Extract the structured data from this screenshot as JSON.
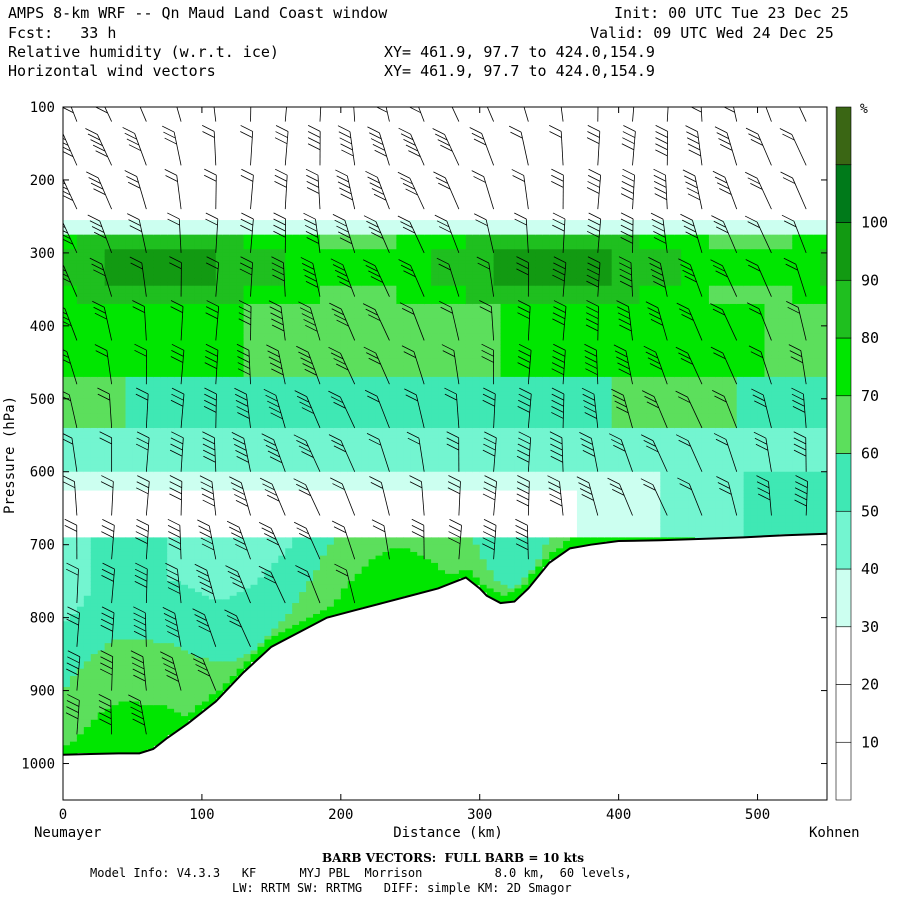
{
  "header": {
    "title": "AMPS 8-km WRF -- Qn Maud Land Coast window",
    "init": "Init: 00 UTC Tue 23 Dec 25",
    "fcst": "Fcst:   33 h",
    "valid": "Valid: 09 UTC Wed 24 Dec 25",
    "field1": "Relative humidity (w.r.t. ice)",
    "xy1": "XY= 461.9, 97.7 to 424.0,154.9",
    "field2": "Horizontal wind vectors",
    "xy2": "XY= 461.9, 97.7 to 424.0,154.9"
  },
  "footer": {
    "barb_note": "BARB VECTORS:  FULL BARB = 10 kts",
    "model_info": "Model Info: V4.3.3   KF      MYJ PBL  Morrison          8.0 km,  60 levels,",
    "model_info2": "LW: RRTM SW: RRTMG   DIFF: simple KM: 2D Smagor"
  },
  "chart_data": {
    "type": "heatmap",
    "title": "Relative humidity (w.r.t. ice) and horizontal wind vectors, cross-section",
    "xlabel": "Distance (km)",
    "ylabel": "Pressure (hPa)",
    "x_start_label": "Neumayer",
    "x_end_label": "Kohnen",
    "xlim": [
      0,
      550
    ],
    "ylim": [
      100,
      1050
    ],
    "x_ticks": [
      0,
      100,
      200,
      300,
      400,
      500
    ],
    "y_ticks": [
      100,
      200,
      300,
      400,
      500,
      600,
      700,
      800,
      900,
      1000
    ],
    "colorbar_unit": "%",
    "colorbar_ticks": [
      10,
      20,
      30,
      40,
      50,
      60,
      70,
      80,
      90,
      100
    ],
    "colorbar_levels": [
      0,
      10,
      20,
      30,
      40,
      50,
      60,
      70,
      80,
      90,
      100,
      110
    ],
    "colorbar_colors": [
      "#ffffff",
      "#ffffff",
      "#ffffff",
      "#ccfff0",
      "#73f5d0",
      "#3fe8b4",
      "#5cdf5c",
      "#00e600",
      "#1fbf1f",
      "#129a12",
      "#007a1a",
      "#3a6614"
    ],
    "terrain_surface": {
      "x_km": [
        0,
        20,
        40,
        55,
        65,
        75,
        90,
        110,
        130,
        150,
        170,
        190,
        210,
        230,
        250,
        270,
        290,
        300,
        305,
        315,
        325,
        335,
        350,
        365,
        380,
        400,
        430,
        460,
        490,
        520,
        550
      ],
      "p_hpa": [
        988,
        987,
        986,
        986,
        980,
        965,
        945,
        915,
        875,
        840,
        820,
        800,
        790,
        780,
        770,
        760,
        745,
        760,
        770,
        780,
        778,
        760,
        725,
        705,
        700,
        695,
        694,
        692,
        690,
        687,
        685
      ]
    },
    "rh_features": [
      {
        "label": "dry layer near 650 hPa",
        "p_range": [
          620,
          690
        ],
        "rh": 15
      },
      {
        "label": "dry upper layer",
        "p_range": [
          100,
          255
        ],
        "rh": 5
      },
      {
        "label": "moist band",
        "p_range": [
          290,
          360
        ],
        "rh": 85
      }
    ],
    "wind_barbs": {
      "x_km": [
        10,
        35,
        60,
        85,
        110,
        135,
        160,
        185,
        210,
        235,
        260,
        285,
        310,
        335,
        360,
        385,
        410,
        435,
        460,
        485,
        510,
        535
      ],
      "p_levels_hpa": [
        120,
        180,
        240,
        300,
        360,
        420,
        480,
        540,
        600,
        660,
        720,
        780,
        840,
        900,
        960
      ],
      "full_barb_kts": 10
    }
  }
}
